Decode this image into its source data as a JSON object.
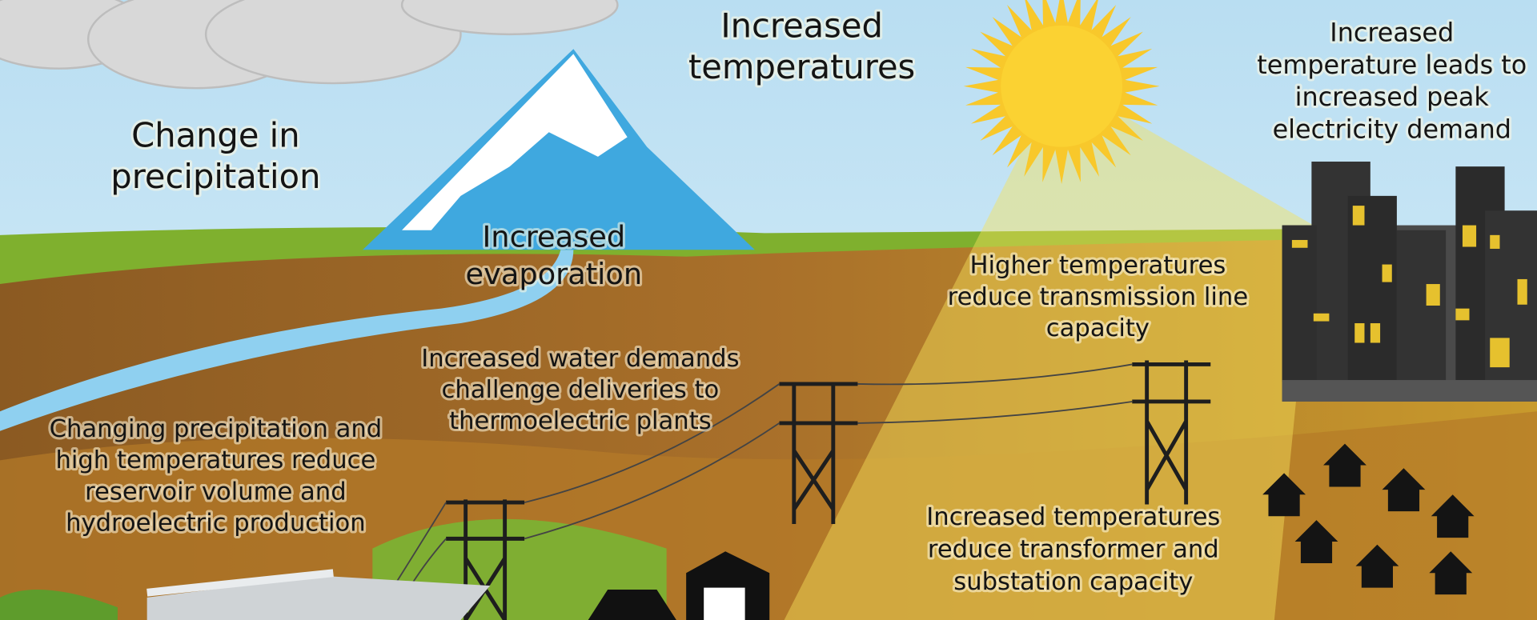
{
  "labels": [
    {
      "lines": [
        "Change in",
        "precipitation"
      ]
    },
    {
      "lines": [
        "Increased",
        "temperatures"
      ]
    },
    {
      "lines": [
        "Increased",
        "temperature leads to",
        "increased peak",
        "electricity demand"
      ]
    },
    {
      "lines": [
        "Increased",
        "evaporation"
      ]
    },
    {
      "lines": [
        "Higher temperatures",
        "reduce transmission line",
        "capacity"
      ]
    },
    {
      "lines": [
        "Increased water demands",
        "challenge deliveries to",
        "thermoelectric plants"
      ]
    },
    {
      "lines": [
        "Changing precipitation and",
        "high temperatures reduce",
        "reservoir volume and",
        "hydroelectric production"
      ]
    },
    {
      "lines": [
        "Increased temperatures",
        "reduce transformer and",
        "substation capacity"
      ]
    }
  ]
}
